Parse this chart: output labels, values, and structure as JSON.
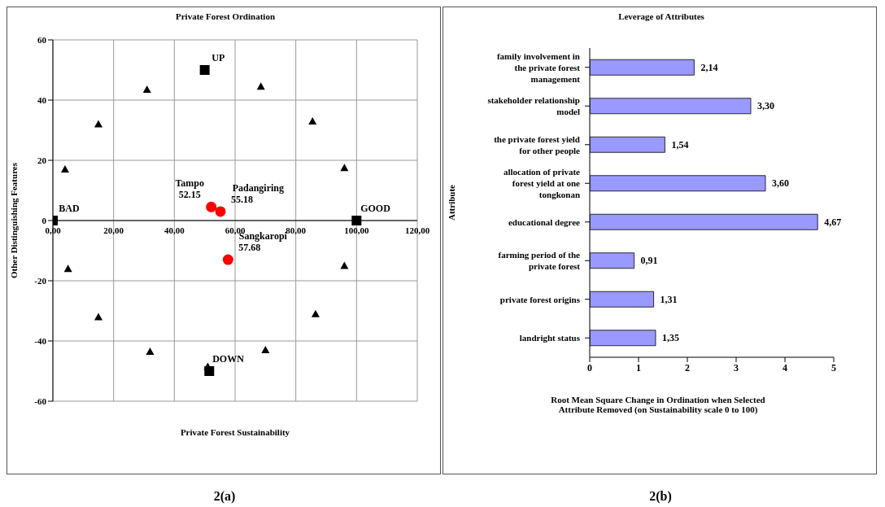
{
  "chart_data": [
    {
      "type": "scatter",
      "title": "Private Forest Ordination",
      "xlabel": "Private Forest Sustainability",
      "ylabel": "Other Distinguishing Features",
      "xlim": [
        0,
        120
      ],
      "xticks": [
        {
          "value": 0,
          "label": "0,00"
        },
        {
          "value": 20,
          "label": "20,00"
        },
        {
          "value": 40,
          "label": "40,00"
        },
        {
          "value": 60,
          "label": "60,00"
        },
        {
          "value": 80,
          "label": "80,00"
        },
        {
          "value": 100,
          "label": "100,00"
        },
        {
          "value": 120,
          "label": "120,00"
        }
      ],
      "ylim": [
        -60,
        60
      ],
      "yticks": [
        -60,
        -40,
        -20,
        0,
        20,
        40,
        60
      ],
      "grid": true,
      "series": [
        {
          "marker": "square",
          "color": "#000000",
          "x": [
            50,
            51.5,
            0,
            100
          ],
          "values": [
            50,
            -50,
            0,
            0
          ]
        },
        {
          "marker": "triangle",
          "color": "#000000",
          "x": [
            4,
            15,
            31,
            68.5,
            85.5,
            96,
            5,
            96,
            15,
            86.5,
            32,
            70,
            51
          ],
          "values": [
            17,
            32,
            43.5,
            44.5,
            33,
            17.5,
            -16,
            -15,
            -32,
            -31,
            -43.5,
            -43,
            -48.5
          ]
        },
        {
          "marker": "circle",
          "color": "#ff0000",
          "x": [
            52.15,
            55.18,
            57.68
          ],
          "values": [
            4.5,
            3,
            -13
          ]
        }
      ],
      "annotations": [
        {
          "text": "UP",
          "x": 50,
          "y": 50
        },
        {
          "text": "DOWN",
          "x": 51.5,
          "y": -50
        },
        {
          "text": "BAD",
          "x": 0,
          "y": 0
        },
        {
          "text": "GOOD",
          "x": 100,
          "y": 0
        },
        {
          "text": "Padangiring\n55.18",
          "x": 55.18,
          "y": 3
        },
        {
          "text": "Tampo\n52.15",
          "x": 52.15,
          "y": 4.5
        },
        {
          "text": "Sangkaropi\n57.68",
          "x": 57.68,
          "y": -13
        },
        "2(a)"
      ]
    },
    {
      "type": "bar",
      "orientation": "horizontal",
      "title": "Leverage of Attributes",
      "ylabel": "Attribute",
      "xlabel": "Root Mean Square Change in Ordination when Selected Attribute Removed (on Sustainability scale 0 to 100)",
      "categories": [
        "family involvement in the private forest management",
        "stakeholder relationship model",
        "the private forest yield for other people",
        "allocation of private forest yield at one tongkonan",
        "educational degree",
        "farming period of the private forest",
        "private forest origins",
        "landright status"
      ],
      "values": [
        2.14,
        3.3,
        1.54,
        3.6,
        4.67,
        0.91,
        1.31,
        1.35
      ],
      "color": "#9999ff",
      "value_labels": [
        "2,14",
        "3,30",
        "1,54",
        "3,60",
        "4,67",
        "0,91",
        "1,31",
        "1,35"
      ],
      "xlim": [
        0,
        5
      ],
      "xticks": [
        0,
        1,
        2,
        3,
        4,
        5
      ],
      "annotations": [
        "2(b)"
      ]
    }
  ]
}
